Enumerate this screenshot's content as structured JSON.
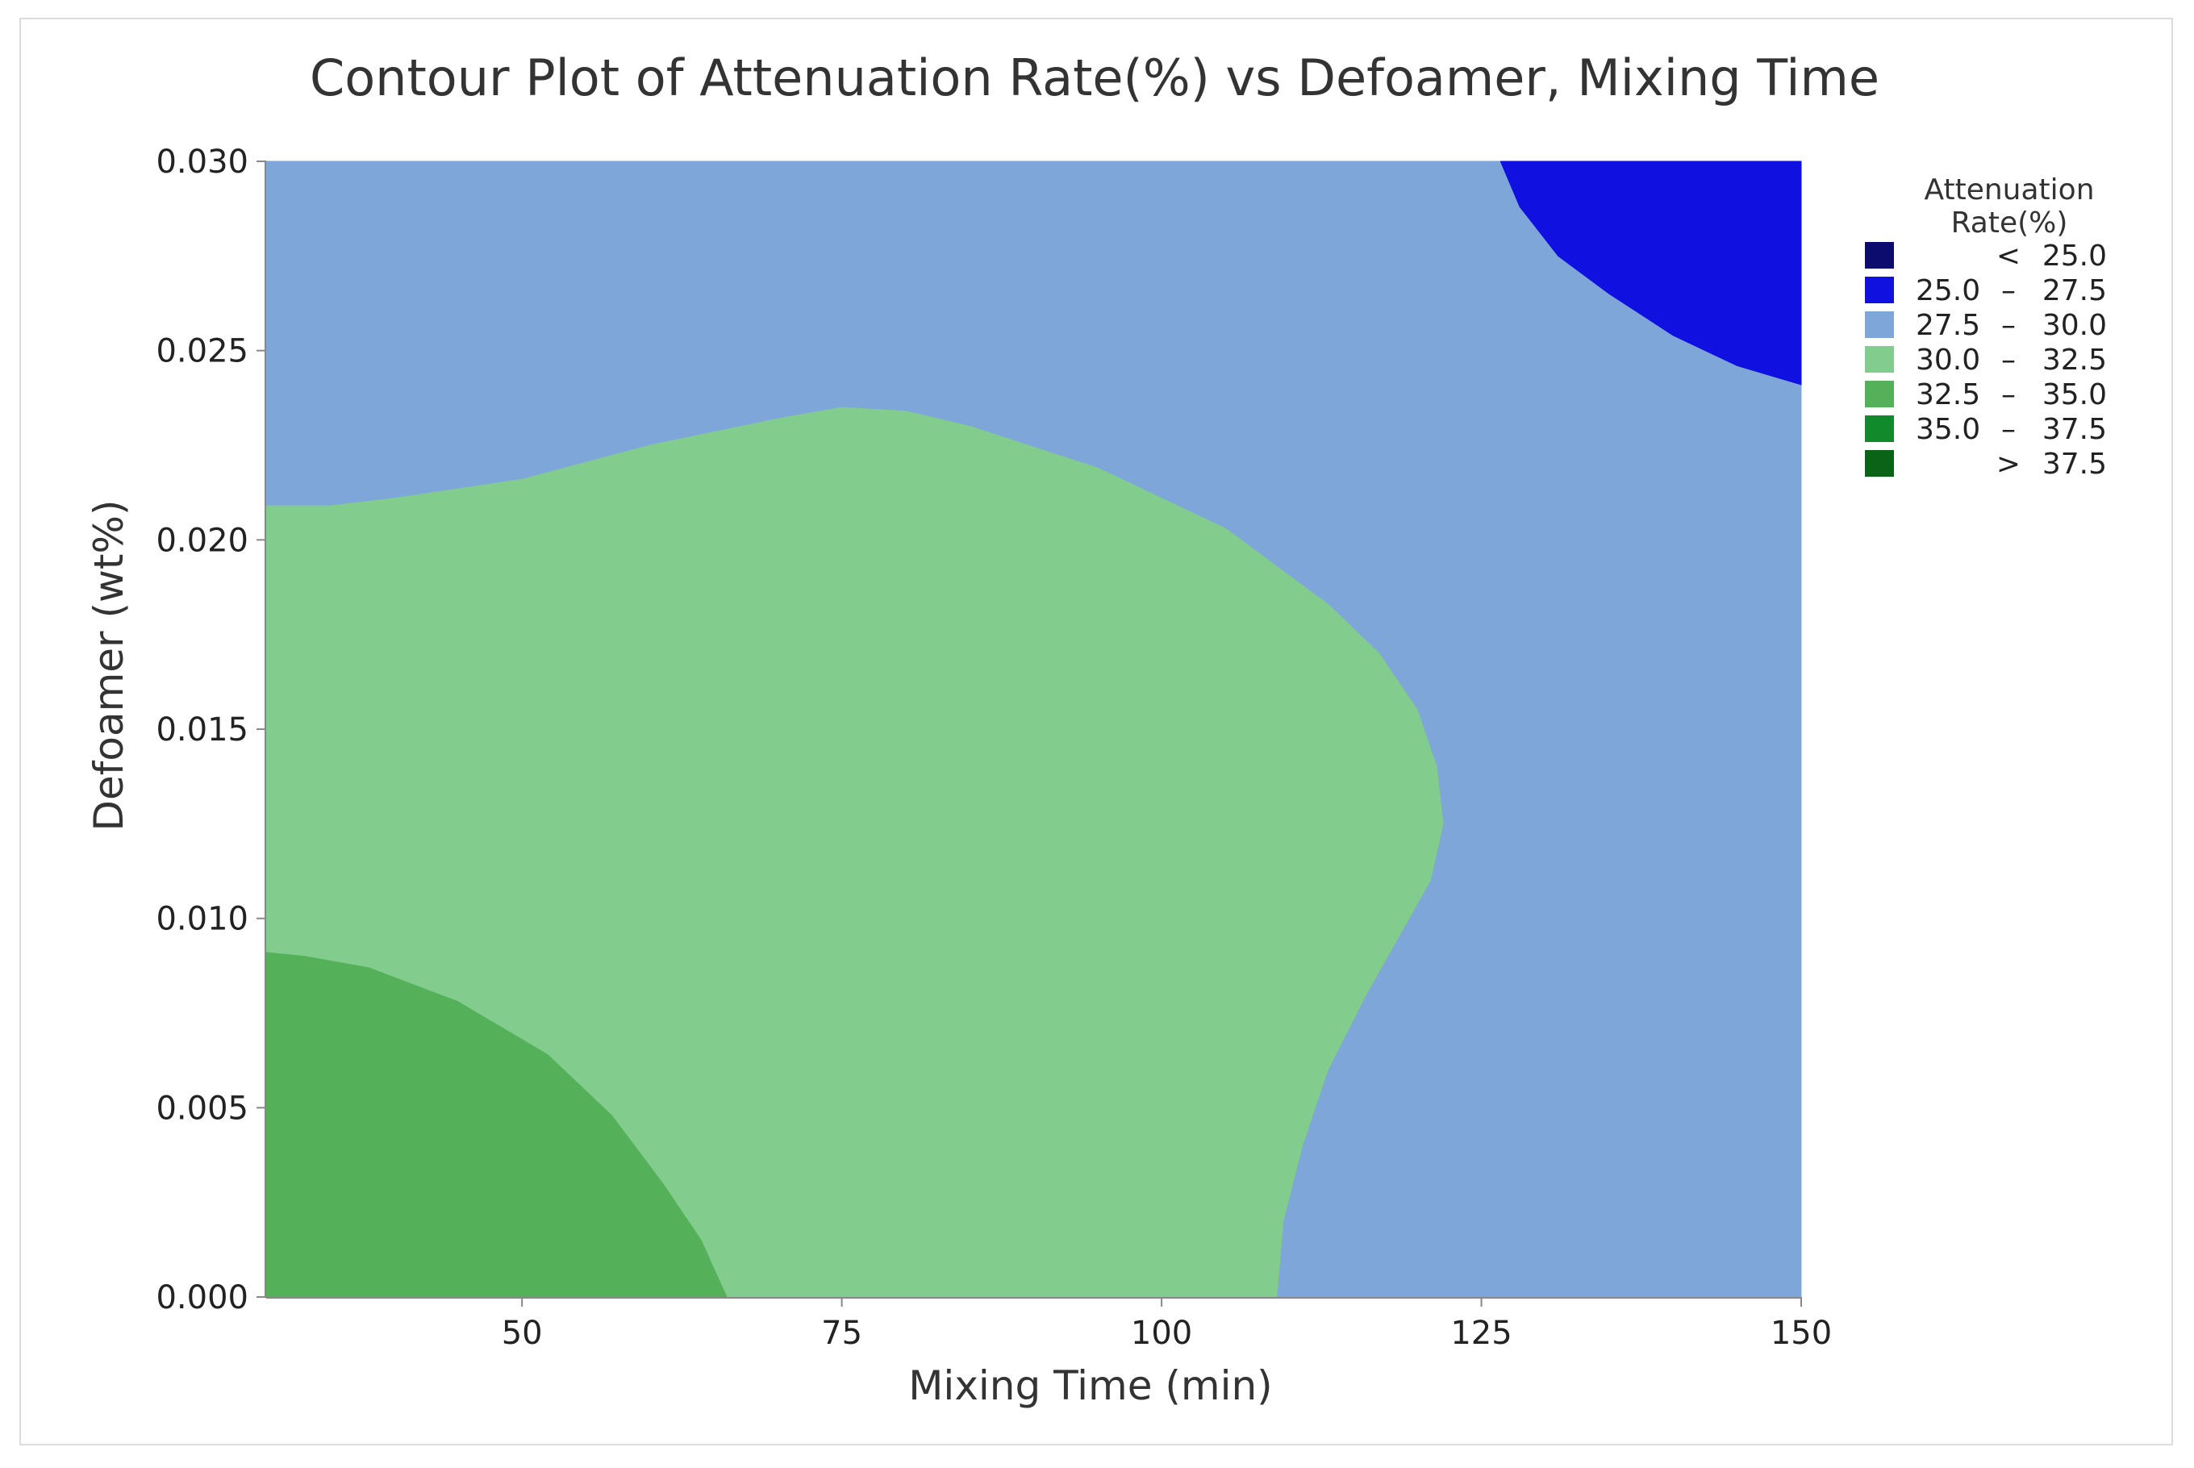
{
  "chart_data": {
    "type": "contour",
    "title": "Contour Plot of Attenuation Rate(%) vs Defoamer, Mixing Time",
    "xlabel": "Mixing Time (min)",
    "ylabel": "Defoamer (wt%)",
    "xlim": [
      30,
      150
    ],
    "ylim": [
      0.0,
      0.03
    ],
    "x_ticks": [
      "50",
      "75",
      "100",
      "125",
      "150"
    ],
    "y_ticks": [
      "0.000",
      "0.005",
      "0.010",
      "0.015",
      "0.020",
      "0.025",
      "0.030"
    ],
    "legend": {
      "title_lines": [
        "Attenuation",
        "Rate(%)"
      ],
      "placement": "right",
      "entries": [
        {
          "op": "<",
          "low": "",
          "high": "25.0",
          "color": "#0c0c6e"
        },
        {
          "op": "–",
          "low": "25.0",
          "high": "27.5",
          "color": "#1010e0"
        },
        {
          "op": "–",
          "low": "27.5",
          "high": "30.0",
          "color": "#7ea6d8"
        },
        {
          "op": "–",
          "low": "30.0",
          "high": "32.5",
          "color": "#82cd8e"
        },
        {
          "op": "–",
          "low": "32.5",
          "high": "35.0",
          "color": "#55b05a"
        },
        {
          "op": "–",
          "low": "35.0",
          "high": "37.5",
          "color": "#118a2c"
        },
        {
          "op": ">",
          "low": "",
          "high": "37.5",
          "color": "#0a6418"
        }
      ]
    },
    "regions": [
      {
        "level": "27.5 – 30.0",
        "color": "#7ea6d8",
        "boundary": [
          [
            30,
            0
          ],
          [
            150,
            0
          ],
          [
            150,
            0.03
          ],
          [
            30,
            0.03
          ]
        ]
      },
      {
        "level": "25.0 – 27.5",
        "color": "#1010e0",
        "boundary": [
          [
            126.5,
            0.03
          ],
          [
            128,
            0.0288
          ],
          [
            131,
            0.0275
          ],
          [
            135,
            0.0265
          ],
          [
            140,
            0.0254
          ],
          [
            145,
            0.0246
          ],
          [
            150,
            0.0241
          ],
          [
            150,
            0.03
          ]
        ]
      },
      {
        "level": "30.0 – 32.5",
        "color": "#82cd8e",
        "boundary": [
          [
            30,
            0
          ],
          [
            109,
            0
          ],
          [
            109.5,
            0.002
          ],
          [
            111,
            0.004
          ],
          [
            113,
            0.006
          ],
          [
            116,
            0.008
          ],
          [
            118.5,
            0.0095
          ],
          [
            121,
            0.011
          ],
          [
            122,
            0.0125
          ],
          [
            121.5,
            0.014
          ],
          [
            120,
            0.0155
          ],
          [
            117,
            0.017
          ],
          [
            113,
            0.0183
          ],
          [
            105,
            0.0203
          ],
          [
            95,
            0.0219
          ],
          [
            85,
            0.023
          ],
          [
            80,
            0.0234
          ],
          [
            75,
            0.0235
          ],
          [
            70,
            0.0232
          ],
          [
            60,
            0.0225
          ],
          [
            50,
            0.0216
          ],
          [
            40,
            0.0211
          ],
          [
            35,
            0.0209
          ],
          [
            30,
            0.0209
          ]
        ]
      },
      {
        "level": "32.5 – 35.0",
        "color": "#55b05a",
        "boundary": [
          [
            30,
            0
          ],
          [
            66,
            0
          ],
          [
            64,
            0.0015
          ],
          [
            61,
            0.003
          ],
          [
            57,
            0.0048
          ],
          [
            52,
            0.0064
          ],
          [
            45,
            0.0078
          ],
          [
            38,
            0.0087
          ],
          [
            33,
            0.009
          ],
          [
            30,
            0.0091
          ]
        ]
      }
    ]
  }
}
